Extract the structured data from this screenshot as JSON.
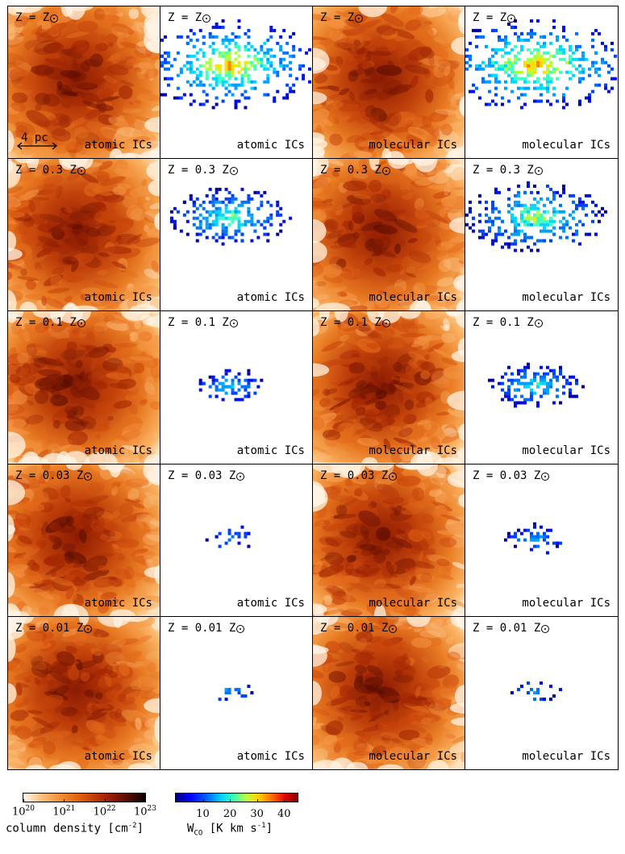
{
  "panels": [
    {
      "z": "Z = Z",
      "ic": "atomic ICs",
      "type": "density",
      "scale_label": "4 pc",
      "co": 0
    },
    {
      "z": "Z = Z",
      "ic": "atomic ICs",
      "type": "wco",
      "co": 1.0
    },
    {
      "z": "Z = Z",
      "ic": "molecular ICs",
      "type": "density",
      "co": 0
    },
    {
      "z": "Z = Z",
      "ic": "molecular ICs",
      "type": "wco",
      "co": 1.05
    },
    {
      "z": "Z = 0.3 Z",
      "ic": "atomic ICs",
      "type": "density",
      "co": 0
    },
    {
      "z": "Z = 0.3 Z",
      "ic": "atomic ICs",
      "type": "wco",
      "co": 0.55
    },
    {
      "z": "Z = 0.3 Z",
      "ic": "molecular ICs",
      "type": "density",
      "co": 0
    },
    {
      "z": "Z = 0.3 Z",
      "ic": "molecular ICs",
      "type": "wco",
      "co": 0.7
    },
    {
      "z": "Z = 0.1 Z",
      "ic": "atomic ICs",
      "type": "density",
      "co": 0
    },
    {
      "z": "Z = 0.1 Z",
      "ic": "atomic ICs",
      "type": "wco",
      "co": 0.18
    },
    {
      "z": "Z = 0.1 Z",
      "ic": "molecular ICs",
      "type": "density",
      "co": 0
    },
    {
      "z": "Z = 0.1 Z",
      "ic": "molecular ICs",
      "type": "wco",
      "co": 0.35
    },
    {
      "z": "Z = 0.03 Z",
      "ic": "atomic ICs",
      "type": "density",
      "co": 0
    },
    {
      "z": "Z = 0.03 Z",
      "ic": "atomic ICs",
      "type": "wco",
      "co": 0.05
    },
    {
      "z": "Z = 0.03 Z",
      "ic": "molecular ICs",
      "type": "density",
      "co": 0
    },
    {
      "z": "Z = 0.03 Z",
      "ic": "molecular ICs",
      "type": "wco",
      "co": 0.12
    },
    {
      "z": "Z = 0.01 Z",
      "ic": "atomic ICs",
      "type": "density",
      "co": 0
    },
    {
      "z": "Z = 0.01 Z",
      "ic": "atomic ICs",
      "type": "wco",
      "co": 0.03
    },
    {
      "z": "Z = 0.01 Z",
      "ic": "molecular ICs",
      "type": "density",
      "co": 0
    },
    {
      "z": "Z = 0.01 Z",
      "ic": "molecular ICs",
      "type": "wco",
      "co": 0.05
    }
  ],
  "colorbars": {
    "density": {
      "ticks": [
        {
          "base": "10",
          "exp": "20"
        },
        {
          "base": "10",
          "exp": "21"
        },
        {
          "base": "10",
          "exp": "22"
        },
        {
          "base": "10",
          "exp": "23"
        }
      ],
      "title_main": "column density [cm",
      "title_exp": "-2",
      "title_end": "]"
    },
    "wco": {
      "ticks": [
        "10",
        "20",
        "30",
        "40"
      ],
      "title_w": "W",
      "title_sub": "CO",
      "title_rest": " [K km s",
      "title_exp": "-1",
      "title_end": "]"
    }
  }
}
